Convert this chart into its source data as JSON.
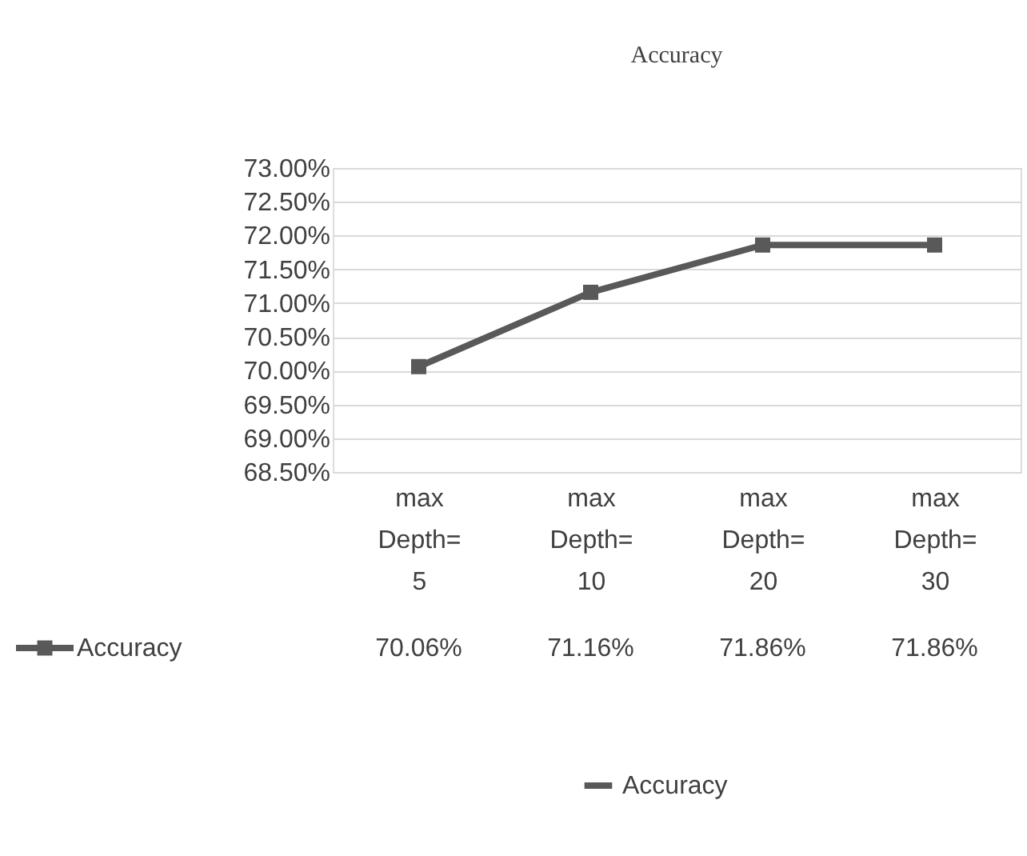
{
  "chart_data": {
    "type": "line",
    "title": "Accuracy",
    "categories": [
      "max Depth= 5",
      "max Depth= 10",
      "max Depth= 20",
      "max Depth= 30"
    ],
    "series": [
      {
        "name": "Accuracy",
        "color": "#595959",
        "values": [
          70.06,
          71.16,
          71.86,
          71.86
        ],
        "value_labels": [
          "70.06%",
          "71.16%",
          "71.86%",
          "71.86%"
        ]
      }
    ],
    "ylim": [
      68.5,
      73
    ],
    "yticks": [
      {
        "value": 68.5,
        "label": "68.50%"
      },
      {
        "value": 69,
        "label": "69.00%"
      },
      {
        "value": 69.5,
        "label": "69.50%"
      },
      {
        "value": 70,
        "label": "70.00%"
      },
      {
        "value": 70.5,
        "label": "70.50%"
      },
      {
        "value": 71,
        "label": "71.00%"
      },
      {
        "value": 71.5,
        "label": "71.50%"
      },
      {
        "value": 72,
        "label": "72.00%"
      },
      {
        "value": 72.5,
        "label": "72.50%"
      },
      {
        "value": 73,
        "label": "73.00%"
      }
    ],
    "grid": "y",
    "legend": "bottom",
    "marker": "square",
    "line_style": "solid"
  }
}
